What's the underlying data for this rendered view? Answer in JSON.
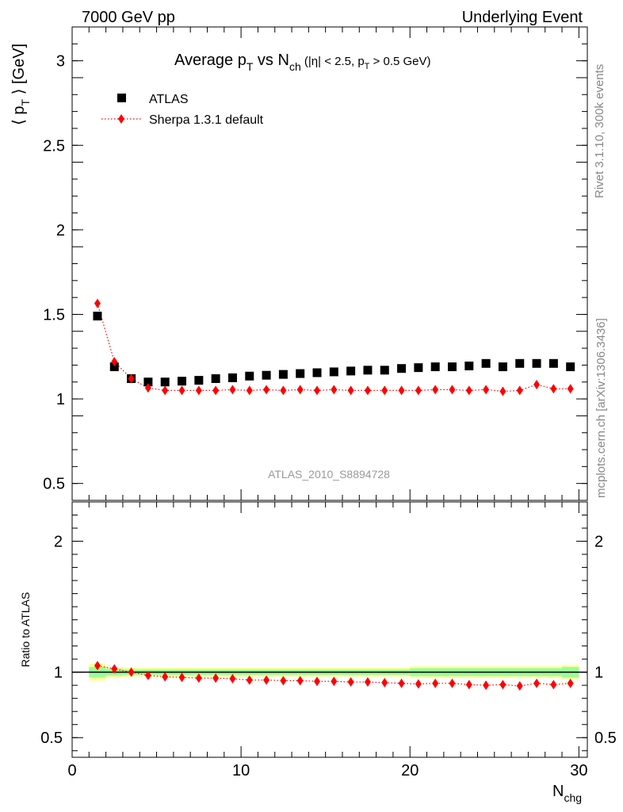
{
  "header": {
    "left": "7000 GeV pp",
    "right": "Underlying Event"
  },
  "side_labels": {
    "rivet": "Rivet 3.1.10,  300k events",
    "mcplots": "mcplots.cern.ch [arXiv:1306.3436]"
  },
  "chart_data": [
    {
      "type": "scatter",
      "title": {
        "main": "Average p",
        "main_sub": "T",
        "mid": " vs N",
        "mid_sub": "ch",
        "cut_open": " (|η| < 2.5, p",
        "cut_sub": "T",
        "cut_close": " > 0.5 GeV)"
      },
      "ylabel": {
        "open": "⟨ p",
        "sub": "T",
        "close": " ⟩ [GeV]"
      },
      "watermark": "ATLAS_2010_S8894728",
      "xlim": [
        0,
        30.5
      ],
      "ylim": [
        0.4,
        3.2
      ],
      "yticks": [
        0.5,
        1,
        1.5,
        2,
        2.5,
        3
      ],
      "ytick_labels": [
        "0.5",
        "1",
        "1.5",
        "2",
        "2.5",
        "3"
      ],
      "legend_position": "top-left",
      "x": [
        1.5,
        2.5,
        3.5,
        4.5,
        5.5,
        6.5,
        7.5,
        8.5,
        9.5,
        10.5,
        11.5,
        12.5,
        13.5,
        14.5,
        15.5,
        16.5,
        17.5,
        18.5,
        19.5,
        20.5,
        21.5,
        22.5,
        23.5,
        24.5,
        25.5,
        26.5,
        27.5,
        28.5,
        29.5
      ],
      "series": [
        {
          "name": "ATLAS",
          "color": "#000000",
          "marker": "square",
          "values": [
            1.49,
            1.19,
            1.12,
            1.1,
            1.1,
            1.105,
            1.11,
            1.12,
            1.125,
            1.135,
            1.14,
            1.145,
            1.15,
            1.155,
            1.16,
            1.165,
            1.17,
            1.17,
            1.18,
            1.185,
            1.19,
            1.19,
            1.195,
            1.21,
            1.19,
            1.21,
            1.21,
            1.21,
            1.19
          ]
        },
        {
          "name": "Sherpa 1.3.1 default",
          "color": "#ff0000",
          "marker": "diamond",
          "line": "dotted",
          "values": [
            1.565,
            1.22,
            1.12,
            1.065,
            1.05,
            1.05,
            1.05,
            1.05,
            1.055,
            1.05,
            1.055,
            1.05,
            1.055,
            1.05,
            1.055,
            1.05,
            1.05,
            1.05,
            1.05,
            1.05,
            1.055,
            1.055,
            1.05,
            1.055,
            1.045,
            1.05,
            1.085,
            1.06,
            1.06
          ]
        }
      ]
    },
    {
      "type": "scatter",
      "ylabel": "Ratio to ATLAS",
      "xlabel": {
        "main": "N",
        "sub": "chg"
      },
      "xlim": [
        0,
        30.5
      ],
      "ylim": [
        0.35,
        2.3
      ],
      "xticks": [
        0,
        10,
        20,
        30
      ],
      "xtick_labels": [
        "0",
        "10",
        "20",
        "30"
      ],
      "yticks": [
        0.5,
        1,
        2
      ],
      "ytick_labels": [
        "0.5",
        "1",
        "2"
      ],
      "reference_line": 1,
      "band_colors": {
        "outer": "#ffff99",
        "inner": "#99ff99"
      },
      "band_edges": [
        1,
        2,
        3,
        20,
        29,
        30
      ],
      "band_outer_halfwidth": [
        0.065,
        0.04,
        0.035,
        0.045,
        0.055
      ],
      "band_inner_halfwidth": [
        0.04,
        0.025,
        0.02,
        0.03,
        0.04
      ],
      "x": [
        1.5,
        2.5,
        3.5,
        4.5,
        5.5,
        6.5,
        7.5,
        8.5,
        9.5,
        10.5,
        11.5,
        12.5,
        13.5,
        14.5,
        15.5,
        16.5,
        17.5,
        18.5,
        19.5,
        20.5,
        21.5,
        22.5,
        23.5,
        24.5,
        25.5,
        26.5,
        27.5,
        28.5,
        29.5
      ],
      "series": [
        {
          "name": "Sherpa 1.3.1 default",
          "color": "#ff0000",
          "marker": "diamond",
          "line": "dotted",
          "values": [
            1.05,
            1.025,
            1.0,
            0.975,
            0.965,
            0.96,
            0.955,
            0.955,
            0.95,
            0.94,
            0.94,
            0.935,
            0.935,
            0.93,
            0.93,
            0.925,
            0.925,
            0.92,
            0.915,
            0.91,
            0.915,
            0.915,
            0.905,
            0.9,
            0.905,
            0.895,
            0.915,
            0.905,
            0.915
          ]
        }
      ]
    }
  ]
}
